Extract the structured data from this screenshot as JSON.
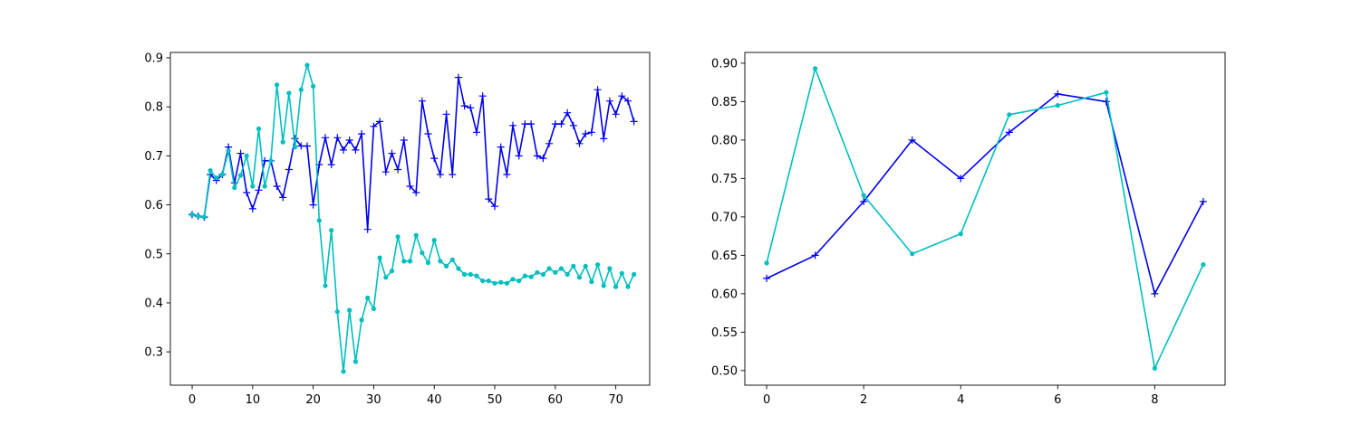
{
  "chart_data": [
    {
      "type": "line",
      "xlim": [
        -3.6,
        75.6
      ],
      "ylim": [
        0.232,
        0.911
      ],
      "xticks": [
        0,
        10,
        20,
        30,
        40,
        50,
        60,
        70
      ],
      "yticks": [
        0.3,
        0.4,
        0.5,
        0.6,
        0.7,
        0.8,
        0.9
      ],
      "xtick_labels": [
        "0",
        "10",
        "20",
        "30",
        "40",
        "50",
        "60",
        "70"
      ],
      "ytick_labels": [
        "0.3",
        "0.4",
        "0.5",
        "0.6",
        "0.7",
        "0.8",
        "0.9"
      ],
      "grid": false,
      "series": [
        {
          "color": "#0000ee",
          "marker": "plus",
          "values": [
            0.58,
            0.577,
            0.575,
            0.662,
            0.65,
            0.662,
            0.718,
            0.645,
            0.705,
            0.625,
            0.592,
            0.63,
            0.69,
            0.69,
            0.638,
            0.615,
            0.672,
            0.735,
            0.72,
            0.72,
            0.6,
            0.682,
            0.737,
            0.682,
            0.737,
            0.712,
            0.732,
            0.712,
            0.745,
            0.55,
            0.76,
            0.77,
            0.667,
            0.705,
            0.672,
            0.732,
            0.638,
            0.625,
            0.812,
            0.745,
            0.695,
            0.662,
            0.785,
            0.662,
            0.86,
            0.802,
            0.798,
            0.748,
            0.822,
            0.612,
            0.597,
            0.718,
            0.662,
            0.762,
            0.7,
            0.765,
            0.765,
            0.7,
            0.695,
            0.725,
            0.765,
            0.765,
            0.788,
            0.762,
            0.725,
            0.745,
            0.748,
            0.835,
            0.735,
            0.812,
            0.785,
            0.822,
            0.812,
            0.77
          ]
        },
        {
          "color": "#00bfbf",
          "marker": "dot",
          "values": [
            0.58,
            0.577,
            0.575,
            0.67,
            0.655,
            0.662,
            0.71,
            0.635,
            0.66,
            0.7,
            0.638,
            0.755,
            0.638,
            0.69,
            0.845,
            0.728,
            0.828,
            0.718,
            0.835,
            0.885,
            0.842,
            0.568,
            0.435,
            0.548,
            0.382,
            0.26,
            0.385,
            0.28,
            0.365,
            0.41,
            0.388,
            0.492,
            0.452,
            0.465,
            0.535,
            0.485,
            0.485,
            0.538,
            0.502,
            0.482,
            0.528,
            0.485,
            0.475,
            0.488,
            0.47,
            0.458,
            0.458,
            0.455,
            0.445,
            0.445,
            0.44,
            0.442,
            0.44,
            0.448,
            0.445,
            0.455,
            0.453,
            0.462,
            0.458,
            0.47,
            0.462,
            0.47,
            0.458,
            0.475,
            0.452,
            0.475,
            0.443,
            0.478,
            0.435,
            0.47,
            0.433,
            0.46,
            0.433,
            0.458
          ]
        }
      ]
    },
    {
      "type": "line",
      "xlim": [
        -0.45,
        9.45
      ],
      "ylim": [
        0.481,
        0.914
      ],
      "xticks": [
        0,
        2,
        4,
        6,
        8
      ],
      "yticks": [
        0.5,
        0.55,
        0.6,
        0.65,
        0.7,
        0.75,
        0.8,
        0.85,
        0.9
      ],
      "xtick_labels": [
        "0",
        "2",
        "4",
        "6",
        "8"
      ],
      "ytick_labels": [
        "0.50",
        "0.55",
        "0.60",
        "0.65",
        "0.70",
        "0.75",
        "0.80",
        "0.85",
        "0.90"
      ],
      "grid": false,
      "series": [
        {
          "color": "#0000ee",
          "marker": "plus",
          "values": [
            0.62,
            0.65,
            0.72,
            0.8,
            0.75,
            0.81,
            0.86,
            0.85,
            0.6,
            0.72
          ]
        },
        {
          "color": "#00bfbf",
          "marker": "dot",
          "values": [
            0.64,
            0.893,
            0.728,
            0.652,
            0.678,
            0.833,
            0.845,
            0.862,
            0.503,
            0.638
          ]
        }
      ]
    }
  ]
}
